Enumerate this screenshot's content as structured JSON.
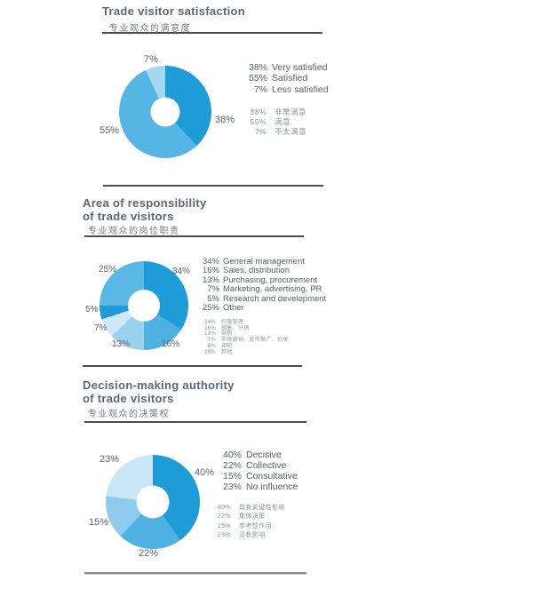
{
  "page": {
    "background": "#ffffff"
  },
  "colors": {
    "accent_dark": "#1e9cd8",
    "accent_medium": "#55b6e6",
    "accent_medium2": "#4fb1e2",
    "accent_light": "#9bd2ee",
    "accent_pale": "#cde7f8",
    "title_text": "#5a6772",
    "legend_zh_text": "#8d97a0",
    "rule_color": "#4d4d4d"
  },
  "sections": [
    {
      "title_line1": "Trade visitor satisfaction",
      "subtitle_zh": "专业观众的满意度"
    },
    {
      "title_line1": "Area of responsibility",
      "title_line2": "of trade visitors",
      "subtitle_zh": "专业观众的岗位职责"
    },
    {
      "title_line1": "Decision-making authority",
      "title_line2": "of trade visitors",
      "subtitle_zh": "专业观众的决策权"
    }
  ],
  "chart_data": [
    {
      "type": "pie",
      "subtype": "donut",
      "title": "Trade visitor satisfaction",
      "title_zh": "专业观众的满意度",
      "values": [
        38,
        55,
        7
      ],
      "labels_en": [
        "Very satisfied",
        "Satisfied",
        "Less satisfied"
      ],
      "labels_zh": [
        "非常满意",
        "满意",
        "不太满意"
      ],
      "slice_labels": [
        "38%",
        "55%",
        "7%"
      ],
      "colors": [
        "#1e9cd8",
        "#55b6e6",
        "#a5d7f0"
      ],
      "start_angle": "12 o'clock",
      "direction": "clockwise",
      "legend_position": "right"
    },
    {
      "type": "pie",
      "subtype": "donut",
      "title": "Area of responsibility of trade visitors",
      "title_zh": "专业观众的岗位职责",
      "values": [
        34,
        16,
        13,
        7,
        5,
        25
      ],
      "labels_en": [
        "General management",
        "Sales, distribution",
        "Purchasing, procurement",
        "Marketing, advertising, PR",
        "Research and development",
        "Other"
      ],
      "labels_zh": [
        "行政管理",
        "销售、分销",
        "采购",
        "市场营销、宣传推广、公关",
        "调研",
        "其他"
      ],
      "slice_labels": [
        "34%",
        "16%",
        "13%",
        "7%",
        "5%",
        "25%"
      ],
      "colors": [
        "#1e9cd8",
        "#4fb1e2",
        "#9bd2ee",
        "#cee8f8",
        "#1e9cd8",
        "#5ab8e6"
      ],
      "start_angle": "12 o'clock",
      "direction": "clockwise",
      "legend_position": "right"
    },
    {
      "type": "pie",
      "subtype": "donut",
      "title": "Decision-making authority of trade visitors",
      "title_zh": "专业观众的决策权",
      "values": [
        40,
        22,
        15,
        23
      ],
      "labels_en": [
        "Decisive",
        "Collective",
        "Consultative",
        "No influence"
      ],
      "labels_zh": [
        "具有关键性影响",
        "集体决策",
        "参考性作用",
        "没有影响"
      ],
      "slice_labels": [
        "40%",
        "22%",
        "15%",
        "23%"
      ],
      "colors": [
        "#1e9cd8",
        "#4fb1e2",
        "#8fcbec",
        "#cbe6f7"
      ],
      "start_angle": "12 o'clock",
      "direction": "clockwise",
      "legend_position": "right"
    }
  ]
}
